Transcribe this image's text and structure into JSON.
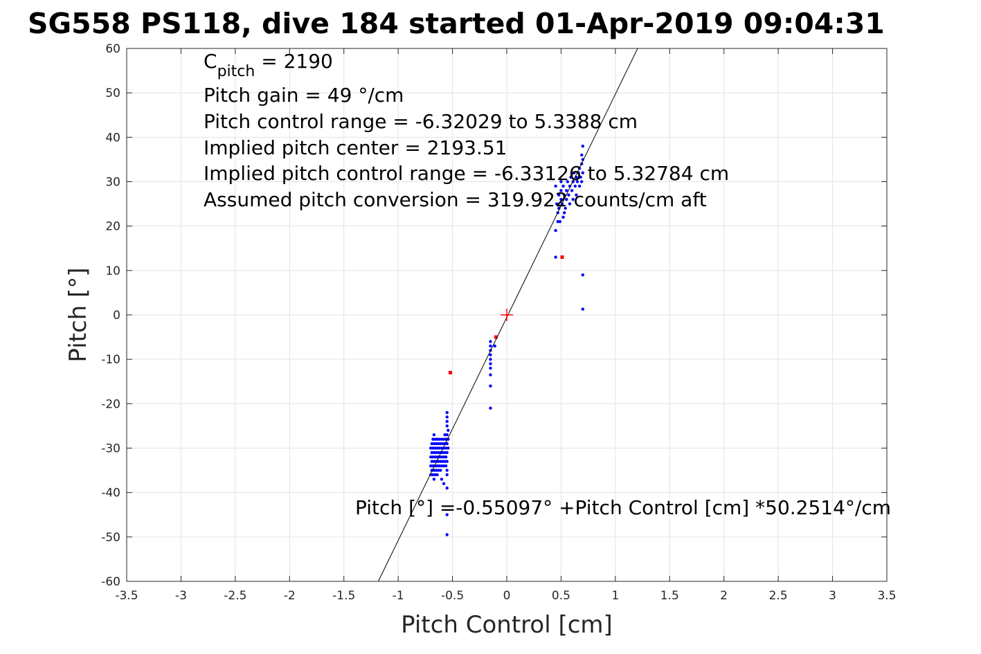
{
  "chart_data": {
    "type": "scatter",
    "title": "SG558 PS118, dive 184 started 01-Apr-2019 09:04:31",
    "xlabel": "Pitch Control [cm]",
    "ylabel": "Pitch [°]",
    "xlim": [
      -3.5,
      3.5
    ],
    "ylim": [
      -60,
      60
    ],
    "xticks": [
      "-3.5",
      "-3",
      "-2.5",
      "-2",
      "-1.5",
      "-1",
      "-0.5",
      "0",
      "0.5",
      "1",
      "1.5",
      "2",
      "2.5",
      "3",
      "3.5"
    ],
    "yticks": [
      "60",
      "50",
      "40",
      "30",
      "20",
      "10",
      "0",
      "-10",
      "-20",
      "-30",
      "-40",
      "-50",
      "-60"
    ],
    "grid": true,
    "annotations": {
      "cpitch_symbol": "C",
      "cpitch_sub": "pitch",
      "cpitch_value": " = 2190",
      "lines": [
        "Pitch gain = 49 °/cm",
        "Pitch control range = -6.32029 to 5.3388 cm",
        "Implied pitch center = 2193.51",
        "Implied pitch control range = -6.33126 to 5.32784 cm",
        "Assumed pitch conversion = 319.922 counts/cm aft"
      ],
      "fit_equation": "Pitch [°] =-0.55097° +Pitch Control [cm] *50.2514°/cm"
    },
    "fit": {
      "intercept": -0.55097,
      "slope": 50.2514
    },
    "center_marker": {
      "x": 0,
      "y": 0,
      "color": "#ff0000"
    },
    "colors": {
      "good": "#0000ff",
      "bad": "#ff0000",
      "fit": "#000000"
    },
    "series": [
      {
        "name": "good",
        "color": "#0000ff",
        "points": [
          [
            -0.7,
            -36
          ],
          [
            -0.7,
            -34
          ],
          [
            -0.7,
            -32
          ],
          [
            -0.7,
            -30
          ],
          [
            -0.69,
            -35
          ],
          [
            -0.69,
            -33
          ],
          [
            -0.69,
            -31
          ],
          [
            -0.69,
            -29
          ],
          [
            -0.68,
            -36
          ],
          [
            -0.68,
            -34
          ],
          [
            -0.68,
            -32
          ],
          [
            -0.68,
            -30
          ],
          [
            -0.68,
            -28
          ],
          [
            -0.67,
            -37
          ],
          [
            -0.67,
            -35
          ],
          [
            -0.67,
            -33
          ],
          [
            -0.67,
            -31
          ],
          [
            -0.67,
            -29
          ],
          [
            -0.67,
            -27
          ],
          [
            -0.66,
            -36
          ],
          [
            -0.66,
            -34
          ],
          [
            -0.66,
            -32
          ],
          [
            -0.66,
            -30
          ],
          [
            -0.66,
            -28
          ],
          [
            -0.65,
            -35
          ],
          [
            -0.65,
            -33
          ],
          [
            -0.65,
            -31
          ],
          [
            -0.65,
            -29
          ],
          [
            -0.64,
            -36
          ],
          [
            -0.64,
            -34
          ],
          [
            -0.64,
            -32
          ],
          [
            -0.64,
            -30
          ],
          [
            -0.64,
            -28
          ],
          [
            -0.63,
            -35
          ],
          [
            -0.63,
            -33
          ],
          [
            -0.63,
            -31
          ],
          [
            -0.63,
            -29
          ],
          [
            -0.62,
            -34
          ],
          [
            -0.62,
            -32
          ],
          [
            -0.62,
            -30
          ],
          [
            -0.62,
            -28
          ],
          [
            -0.61,
            -35
          ],
          [
            -0.61,
            -33
          ],
          [
            -0.61,
            -31
          ],
          [
            -0.61,
            -29
          ],
          [
            -0.6,
            -34
          ],
          [
            -0.6,
            -32
          ],
          [
            -0.6,
            -30
          ],
          [
            -0.6,
            -28
          ],
          [
            -0.59,
            -33
          ],
          [
            -0.59,
            -31
          ],
          [
            -0.59,
            -29
          ],
          [
            -0.58,
            -34
          ],
          [
            -0.58,
            -32
          ],
          [
            -0.58,
            -30
          ],
          [
            -0.58,
            -28
          ],
          [
            -0.57,
            -33
          ],
          [
            -0.57,
            -31
          ],
          [
            -0.57,
            -29
          ],
          [
            -0.57,
            -27
          ],
          [
            -0.56,
            -34
          ],
          [
            -0.56,
            -32
          ],
          [
            -0.56,
            -30
          ],
          [
            -0.56,
            -28
          ],
          [
            -0.55,
            -35
          ],
          [
            -0.55,
            -33
          ],
          [
            -0.55,
            -31
          ],
          [
            -0.55,
            -29
          ],
          [
            -0.55,
            -27
          ],
          [
            -0.55,
            -25
          ],
          [
            -0.55,
            -24
          ],
          [
            -0.55,
            -23
          ],
          [
            -0.55,
            -22
          ],
          [
            -0.54,
            -30
          ],
          [
            -0.54,
            -28
          ],
          [
            -0.54,
            -26
          ],
          [
            -0.55,
            -36
          ],
          [
            -0.58,
            -38
          ],
          [
            -0.55,
            -39
          ],
          [
            -0.6,
            -37
          ],
          [
            -0.55,
            -45
          ],
          [
            -0.55,
            -49.5
          ],
          [
            -0.15,
            -6
          ],
          [
            -0.15,
            -7
          ],
          [
            -0.15,
            -8
          ],
          [
            -0.15,
            -9
          ],
          [
            -0.15,
            -10
          ],
          [
            -0.15,
            -11
          ],
          [
            -0.15,
            -12
          ],
          [
            -0.15,
            -13.5
          ],
          [
            -0.15,
            -16
          ],
          [
            -0.15,
            -21
          ],
          [
            -0.11,
            -7
          ],
          [
            0.45,
            29
          ],
          [
            0.46,
            25
          ],
          [
            0.47,
            23
          ],
          [
            0.48,
            27
          ],
          [
            0.48,
            24
          ],
          [
            0.49,
            21
          ],
          [
            0.5,
            26
          ],
          [
            0.5,
            28
          ],
          [
            0.51,
            25
          ],
          [
            0.52,
            22
          ],
          [
            0.52,
            29
          ],
          [
            0.53,
            27
          ],
          [
            0.54,
            24
          ],
          [
            0.55,
            28
          ],
          [
            0.55,
            26
          ],
          [
            0.56,
            30
          ],
          [
            0.57,
            27
          ],
          [
            0.58,
            25
          ],
          [
            0.58,
            29
          ],
          [
            0.59,
            31
          ],
          [
            0.6,
            28
          ],
          [
            0.61,
            26
          ],
          [
            0.61,
            30
          ],
          [
            0.62,
            32
          ],
          [
            0.63,
            29
          ],
          [
            0.64,
            27
          ],
          [
            0.64,
            31
          ],
          [
            0.65,
            30
          ],
          [
            0.66,
            32
          ],
          [
            0.67,
            29
          ],
          [
            0.67,
            33
          ],
          [
            0.68,
            31
          ],
          [
            0.69,
            34
          ],
          [
            0.69,
            30
          ],
          [
            0.7,
            32
          ],
          [
            0.7,
            35
          ],
          [
            0.69,
            36
          ],
          [
            0.7,
            38
          ],
          [
            0.47,
            21
          ],
          [
            0.45,
            19
          ],
          [
            0.45,
            13
          ],
          [
            0.7,
            9
          ],
          [
            0.7,
            1.3
          ],
          [
            0.53,
            23
          ],
          [
            0.5,
            30
          ]
        ]
      },
      {
        "name": "bad",
        "color": "#ff0000",
        "points": [
          [
            -0.1,
            -5
          ],
          [
            -0.52,
            -13
          ],
          [
            0.51,
            13
          ]
        ]
      }
    ]
  }
}
